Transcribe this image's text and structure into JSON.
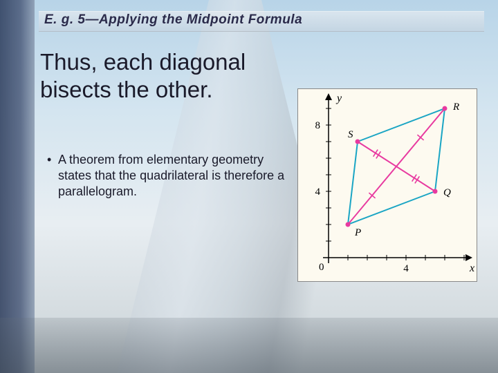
{
  "slide": {
    "title": "E. g. 5—Applying the Midpoint Formula",
    "main_text": "Thus, each diagonal bisects the other.",
    "bullet": "A theorem from elementary geometry states that the quadrilateral is therefore a parallelogram."
  },
  "figure": {
    "type": "coordinate-plot",
    "background_color": "#fdfaf0",
    "axis_color": "#000000",
    "x_axis": {
      "label": "x",
      "ticks": [
        {
          "value": 4,
          "label": "4"
        }
      ],
      "range": [
        0,
        8
      ]
    },
    "y_axis": {
      "label": "y",
      "ticks": [
        {
          "value": 4,
          "label": "4"
        },
        {
          "value": 8,
          "label": "8"
        }
      ],
      "range": [
        0,
        10
      ]
    },
    "origin_label": "0",
    "points": {
      "P": {
        "x": 1,
        "y": 2,
        "label": "P"
      },
      "Q": {
        "x": 5.5,
        "y": 4,
        "label": "Q"
      },
      "R": {
        "x": 6,
        "y": 9,
        "label": "R"
      },
      "S": {
        "x": 1.5,
        "y": 7,
        "label": "S"
      }
    },
    "quadrilateral": {
      "vertices": [
        "P",
        "Q",
        "R",
        "S"
      ],
      "edge_color": "#1aa5c4",
      "edge_width": 2
    },
    "diagonals": [
      {
        "from": "P",
        "to": "R",
        "color": "#e83aa0",
        "width": 2
      },
      {
        "from": "Q",
        "to": "S",
        "color": "#e83aa0",
        "width": 2
      }
    ],
    "tick_marks": {
      "color": "#e83aa0",
      "segments": [
        {
          "on": "PR",
          "half": "lower"
        },
        {
          "on": "PR",
          "half": "upper"
        },
        {
          "on": "QS",
          "half": "lower"
        },
        {
          "on": "QS",
          "half": "upper"
        }
      ]
    },
    "point_marker": {
      "fill": "#e83aa0",
      "radius": 3.5
    }
  }
}
